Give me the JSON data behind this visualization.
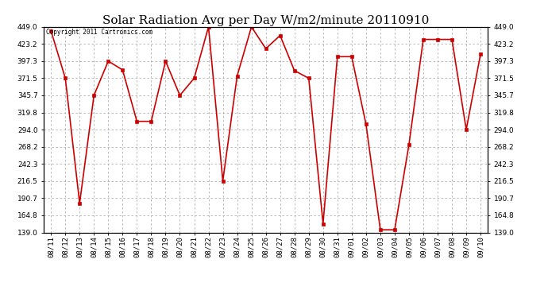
{
  "title": "Solar Radiation Avg per Day W/m2/minute 20110910",
  "copyright": "Copyright 2011 Cartronics.com",
  "dates": [
    "08/11",
    "08/12",
    "08/13",
    "08/14",
    "08/15",
    "08/16",
    "08/17",
    "08/18",
    "08/19",
    "08/20",
    "08/21",
    "08/22",
    "08/23",
    "08/24",
    "08/25",
    "08/26",
    "08/27",
    "08/28",
    "08/29",
    "08/30",
    "08/31",
    "09/01",
    "09/02",
    "09/03",
    "09/04",
    "09/05",
    "09/06",
    "09/07",
    "09/08",
    "09/09",
    "09/10"
  ],
  "values": [
    443.0,
    371.5,
    183.0,
    345.7,
    397.3,
    384.0,
    306.5,
    306.5,
    397.3,
    345.7,
    371.5,
    449.0,
    216.5,
    375.0,
    449.0,
    416.0,
    436.0,
    383.0,
    371.5,
    152.0,
    404.0,
    404.0,
    302.0,
    143.0,
    143.0,
    271.5,
    430.0,
    430.0,
    430.0,
    294.0,
    408.0
  ],
  "ylim": [
    139.0,
    449.0
  ],
  "yticks": [
    139.0,
    164.8,
    190.7,
    216.5,
    242.3,
    268.2,
    294.0,
    319.8,
    345.7,
    371.5,
    397.3,
    423.2,
    449.0
  ],
  "line_color": "#cc0000",
  "marker": "s",
  "marker_size": 2.5,
  "bg_color": "#ffffff",
  "grid_color": "#b0b0b0",
  "title_fontsize": 11,
  "tick_fontsize": 6.5
}
